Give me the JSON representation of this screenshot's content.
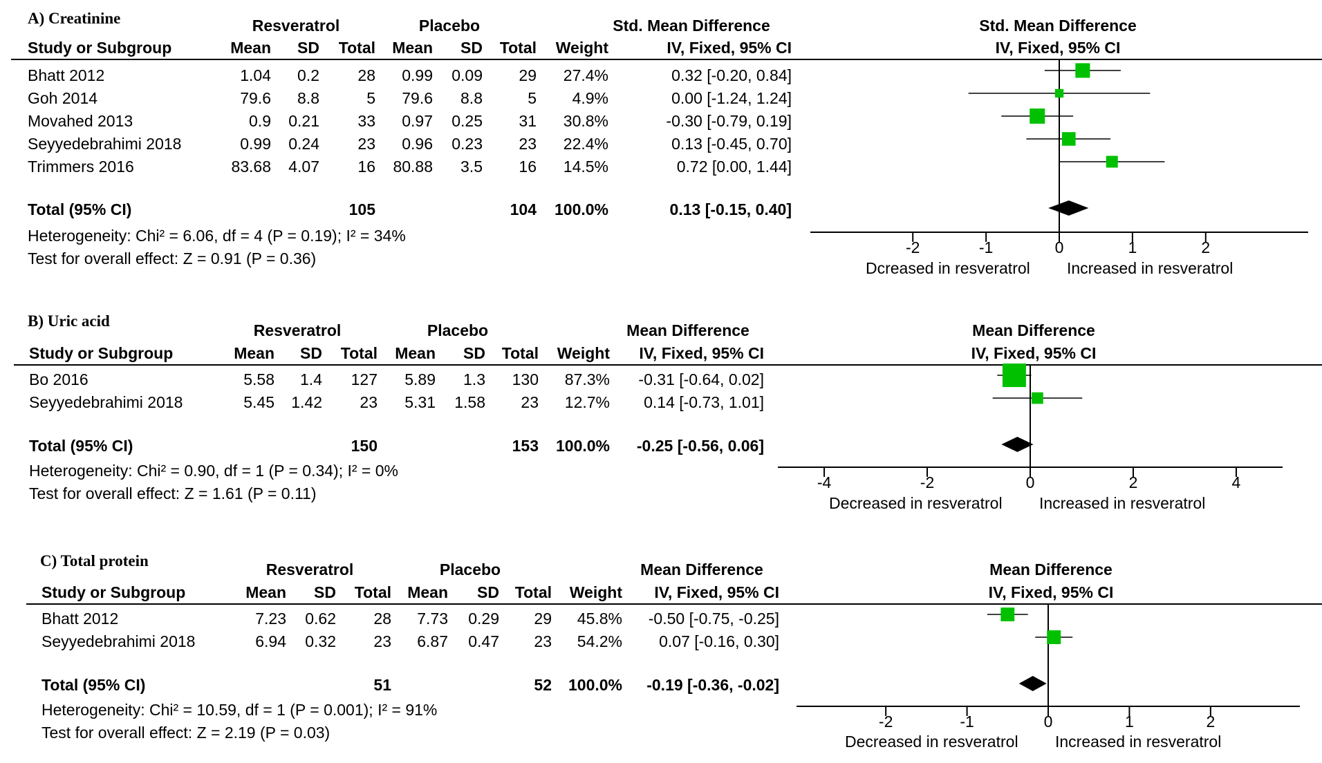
{
  "panels": [
    {
      "title": "A) Creatinine",
      "group1_label": "Resveratrol",
      "group2_label": "Placebo",
      "effect_label": "Std. Mean Difference",
      "method_label": "IV, Fixed, 95% CI",
      "col_headers": {
        "study": "Study or Subgroup",
        "mean": "Mean",
        "sd": "SD",
        "total": "Total",
        "weight": "Weight"
      },
      "rows": [
        {
          "study": "Bhatt 2012",
          "m1": "1.04",
          "sd1": "0.2",
          "n1": "28",
          "m2": "0.99",
          "sd2": "0.09",
          "n2": "29",
          "weight": "27.4%",
          "ci_text": "0.32 [-0.20, 0.84]"
        },
        {
          "study": "Goh 2014",
          "m1": "79.6",
          "sd1": "8.8",
          "n1": "5",
          "m2": "79.6",
          "sd2": "8.8",
          "n2": "5",
          "weight": "4.9%",
          "ci_text": "0.00 [-1.24, 1.24]"
        },
        {
          "study": "Movahed 2013",
          "m1": "0.9",
          "sd1": "0.21",
          "n1": "33",
          "m2": "0.97",
          "sd2": "0.25",
          "n2": "31",
          "weight": "30.8%",
          "ci_text": "-0.30 [-0.79, 0.19]"
        },
        {
          "study": "Seyyedebrahimi 2018",
          "m1": "0.99",
          "sd1": "0.24",
          "n1": "23",
          "m2": "0.96",
          "sd2": "0.23",
          "n2": "23",
          "weight": "22.4%",
          "ci_text": "0.13 [-0.45, 0.70]"
        },
        {
          "study": "Trimmers 2016",
          "m1": "83.68",
          "sd1": "4.07",
          "n1": "16",
          "m2": "80.88",
          "sd2": "3.5",
          "n2": "16",
          "weight": "14.5%",
          "ci_text": "0.72 [0.00, 1.44]"
        }
      ],
      "total": {
        "label": "Total (95% CI)",
        "n1": "105",
        "n2": "104",
        "weight": "100.0%",
        "ci_text": "0.13 [-0.15, 0.40]"
      },
      "heterogeneity": "Heterogeneity: Chi² = 6.06, df = 4 (P = 0.19); I² = 34%",
      "overall": "Test for overall effect: Z = 0.91 (P = 0.36)",
      "axis_left_label": "Dcreased in resveratrol",
      "axis_right_label": "Increased in resveratrol"
    },
    {
      "title": "B) Uric acid",
      "group1_label": "Resveratrol",
      "group2_label": "Placebo",
      "effect_label": "Mean Difference",
      "method_label": "IV, Fixed, 95% CI",
      "col_headers": {
        "study": "Study or Subgroup",
        "mean": "Mean",
        "sd": "SD",
        "total": "Total",
        "weight": "Weight"
      },
      "rows": [
        {
          "study": "Bo 2016",
          "m1": "5.58",
          "sd1": "1.4",
          "n1": "127",
          "m2": "5.89",
          "sd2": "1.3",
          "n2": "130",
          "weight": "87.3%",
          "ci_text": "-0.31 [-0.64, 0.02]"
        },
        {
          "study": "Seyyedebrahimi 2018",
          "m1": "5.45",
          "sd1": "1.42",
          "n1": "23",
          "m2": "5.31",
          "sd2": "1.58",
          "n2": "23",
          "weight": "12.7%",
          "ci_text": "0.14 [-0.73, 1.01]"
        }
      ],
      "total": {
        "label": "Total (95% CI)",
        "n1": "150",
        "n2": "153",
        "weight": "100.0%",
        "ci_text": "-0.25 [-0.56, 0.06]"
      },
      "heterogeneity": "Heterogeneity: Chi² = 0.90, df = 1 (P = 0.34); I² = 0%",
      "overall": "Test for overall effect: Z = 1.61 (P = 0.11)",
      "axis_left_label": "Decreased in resveratrol",
      "axis_right_label": "Increased in resveratrol"
    },
    {
      "title": "C) Total protein",
      "group1_label": "Resveratrol",
      "group2_label": "Placebo",
      "effect_label": "Mean Difference",
      "method_label": "IV, Fixed, 95% CI",
      "col_headers": {
        "study": "Study or Subgroup",
        "mean": "Mean",
        "sd": "SD",
        "total": "Total",
        "weight": "Weight"
      },
      "rows": [
        {
          "study": "Bhatt 2012",
          "m1": "7.23",
          "sd1": "0.62",
          "n1": "28",
          "m2": "7.73",
          "sd2": "0.29",
          "n2": "29",
          "weight": "45.8%",
          "ci_text": "-0.50 [-0.75, -0.25]"
        },
        {
          "study": "Seyyedebrahimi 2018",
          "m1": "6.94",
          "sd1": "0.32",
          "n1": "23",
          "m2": "6.87",
          "sd2": "0.47",
          "n2": "23",
          "weight": "54.2%",
          "ci_text": "0.07 [-0.16, 0.30]"
        }
      ],
      "total": {
        "label": "Total (95% CI)",
        "n1": "51",
        "n2": "52",
        "weight": "100.0%",
        "ci_text": "-0.19 [-0.36, -0.02]"
      },
      "heterogeneity": "Heterogeneity: Chi² = 10.59, df = 1 (P = 0.001); I² = 91%",
      "overall": "Test for overall effect: Z = 2.19 (P = 0.03)",
      "axis_left_label": "Decreased in resveratrol",
      "axis_right_label": "Increased in resveratrol"
    }
  ],
  "chart_data": [
    {
      "type": "forest",
      "title": "A) Creatinine",
      "xlim": [
        -3.4,
        3.4
      ],
      "ticks": [
        -2,
        -1,
        0,
        1,
        2
      ],
      "tick_labels": [
        "-2",
        "-1",
        "0",
        "1",
        "2"
      ],
      "studies": [
        {
          "name": "Bhatt 2012",
          "estimate": 0.32,
          "lower": -0.2,
          "upper": 0.84,
          "weight": 27.4
        },
        {
          "name": "Goh 2014",
          "estimate": 0.0,
          "lower": -1.24,
          "upper": 1.24,
          "weight": 4.9
        },
        {
          "name": "Movahed 2013",
          "estimate": -0.3,
          "lower": -0.79,
          "upper": 0.19,
          "weight": 30.8
        },
        {
          "name": "Seyyedebrahimi 2018",
          "estimate": 0.13,
          "lower": -0.45,
          "upper": 0.7,
          "weight": 22.4
        },
        {
          "name": "Trimmers 2016",
          "estimate": 0.72,
          "lower": 0.0,
          "upper": 1.44,
          "weight": 14.5
        }
      ],
      "pooled": {
        "estimate": 0.13,
        "lower": -0.15,
        "upper": 0.4
      },
      "marker_color": "#00c000"
    },
    {
      "type": "forest",
      "title": "B) Uric acid",
      "xlim": [
        -4.9,
        4.9
      ],
      "ticks": [
        -4,
        -2,
        0,
        2,
        4
      ],
      "tick_labels": [
        "-4",
        "-2",
        "0",
        "2",
        "4"
      ],
      "studies": [
        {
          "name": "Bo 2016",
          "estimate": -0.31,
          "lower": -0.64,
          "upper": 0.02,
          "weight": 87.3
        },
        {
          "name": "Seyyedebrahimi 2018",
          "estimate": 0.14,
          "lower": -0.73,
          "upper": 1.01,
          "weight": 12.7
        }
      ],
      "pooled": {
        "estimate": -0.25,
        "lower": -0.56,
        "upper": 0.06
      },
      "marker_color": "#00c000"
    },
    {
      "type": "forest",
      "title": "C) Total protein",
      "xlim": [
        -3.1,
        3.1
      ],
      "ticks": [
        -2,
        -1,
        0,
        1,
        2
      ],
      "tick_labels": [
        "-2",
        "-1",
        "0",
        "1",
        "2"
      ],
      "studies": [
        {
          "name": "Bhatt 2012",
          "estimate": -0.5,
          "lower": -0.75,
          "upper": -0.25,
          "weight": 45.8
        },
        {
          "name": "Seyyedebrahimi 2018",
          "estimate": 0.07,
          "lower": -0.16,
          "upper": 0.3,
          "weight": 54.2
        }
      ],
      "pooled": {
        "estimate": -0.19,
        "lower": -0.36,
        "upper": -0.02
      },
      "marker_color": "#00c000"
    }
  ]
}
